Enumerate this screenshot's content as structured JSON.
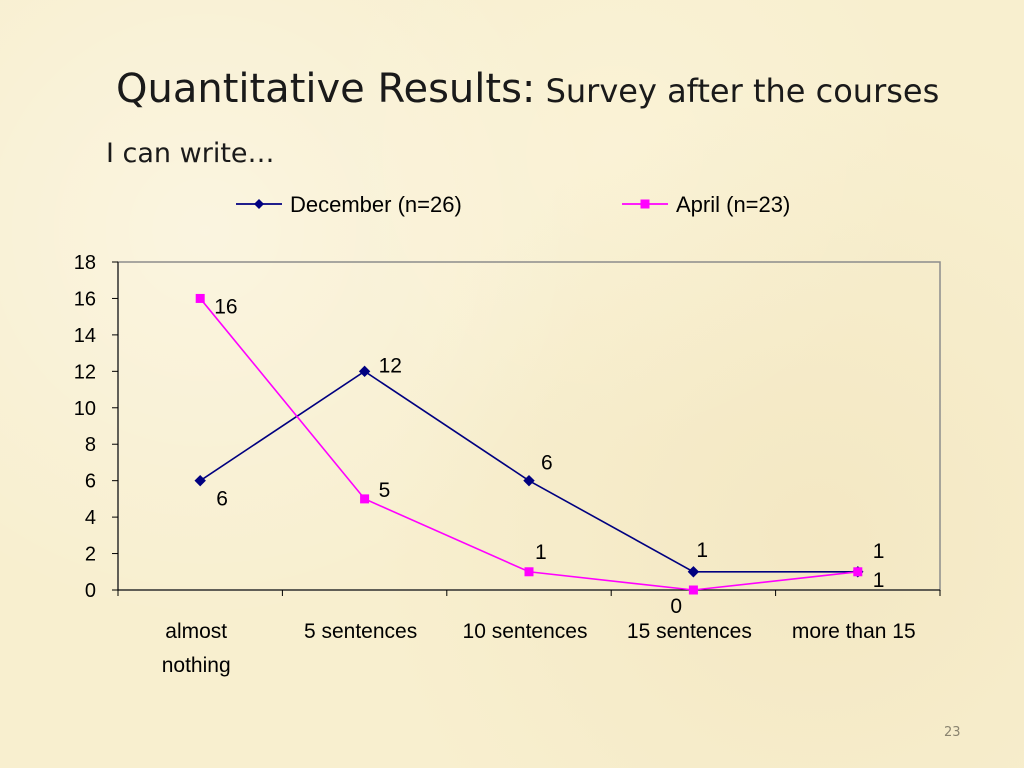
{
  "slide": {
    "title_main": "Quantitative Results:",
    "title_sub": " Survey after the courses",
    "subtitle": "I can write…",
    "page_number": "23"
  },
  "chart_data": {
    "type": "line",
    "categories": [
      "almost nothing",
      "5 sentences",
      "10 sentences",
      "15 sentences",
      "more than 15"
    ],
    "category_lines": [
      [
        "almost",
        "nothing"
      ],
      [
        "5 sentences"
      ],
      [
        "10 sentences"
      ],
      [
        "15 sentences"
      ],
      [
        "more than 15"
      ]
    ],
    "series": [
      {
        "name": "December (n=26)",
        "values": [
          6,
          12,
          6,
          1,
          1
        ],
        "color": "#000080",
        "marker": "diamond"
      },
      {
        "name": "April (n=23)",
        "values": [
          16,
          5,
          1,
          0,
          1
        ],
        "color": "#ff00ff",
        "marker": "square"
      }
    ],
    "ylim": [
      0,
      18
    ],
    "yticks": [
      0,
      2,
      4,
      6,
      8,
      10,
      12,
      14,
      16,
      18
    ],
    "legend_position": "top",
    "grid": false
  }
}
